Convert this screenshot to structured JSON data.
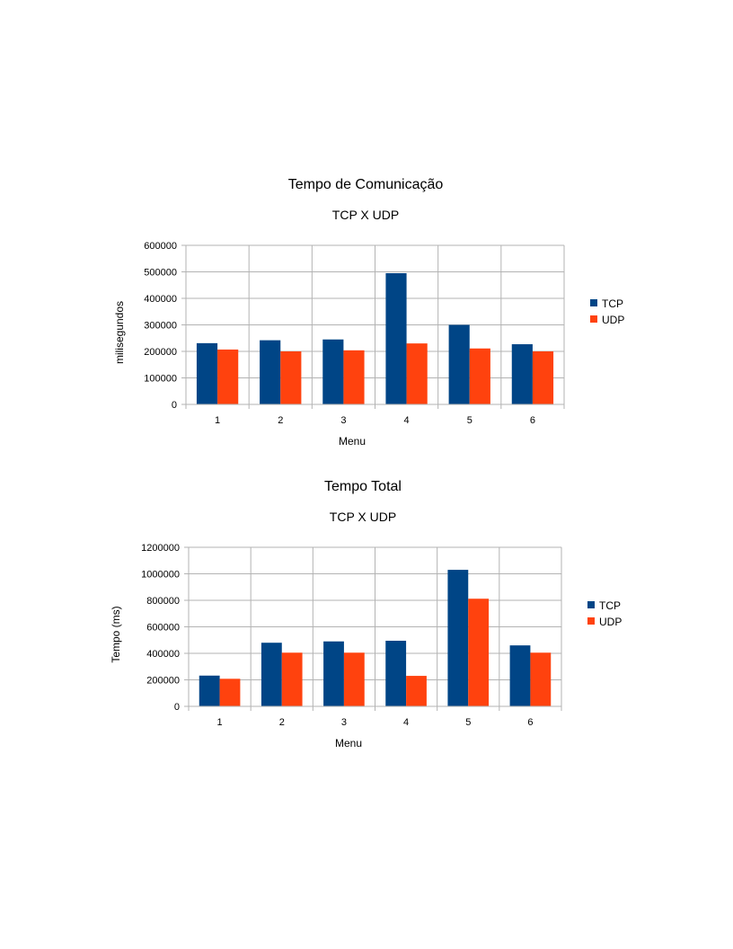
{
  "chart_data": [
    {
      "type": "bar",
      "title": "Tempo de Comunicação",
      "subtitle": "TCP X UDP",
      "xlabel": "Menu",
      "ylabel": "milisegundos",
      "categories": [
        "1",
        "2",
        "3",
        "4",
        "5",
        "6"
      ],
      "ylim": [
        0,
        600000
      ],
      "yticks": [
        "0",
        "100000",
        "200000",
        "300000",
        "400000",
        "500000",
        "600000"
      ],
      "grid": true,
      "legend_position": "right",
      "series": [
        {
          "name": "TCP",
          "color": "#004586",
          "values": [
            231000,
            242000,
            245000,
            495000,
            300000,
            227000
          ]
        },
        {
          "name": "UDP",
          "color": "#ff420e",
          "values": [
            207000,
            200000,
            204000,
            230000,
            211000,
            200000
          ]
        }
      ]
    },
    {
      "type": "bar",
      "title": "Tempo Total",
      "subtitle": "TCP X UDP",
      "xlabel": "Menu",
      "ylabel": "Tempo (ms)",
      "categories": [
        "1",
        "2",
        "3",
        "4",
        "5",
        "6"
      ],
      "ylim": [
        0,
        1200000
      ],
      "yticks": [
        "0",
        "200000",
        "400000",
        "600000",
        "800000",
        "1000000",
        "1200000"
      ],
      "grid": true,
      "legend_position": "right",
      "series": [
        {
          "name": "TCP",
          "color": "#004586",
          "values": [
            232000,
            480000,
            490000,
            495000,
            1030000,
            460000
          ]
        },
        {
          "name": "UDP",
          "color": "#ff420e",
          "values": [
            208000,
            405000,
            405000,
            230000,
            812000,
            405000
          ]
        }
      ]
    }
  ]
}
